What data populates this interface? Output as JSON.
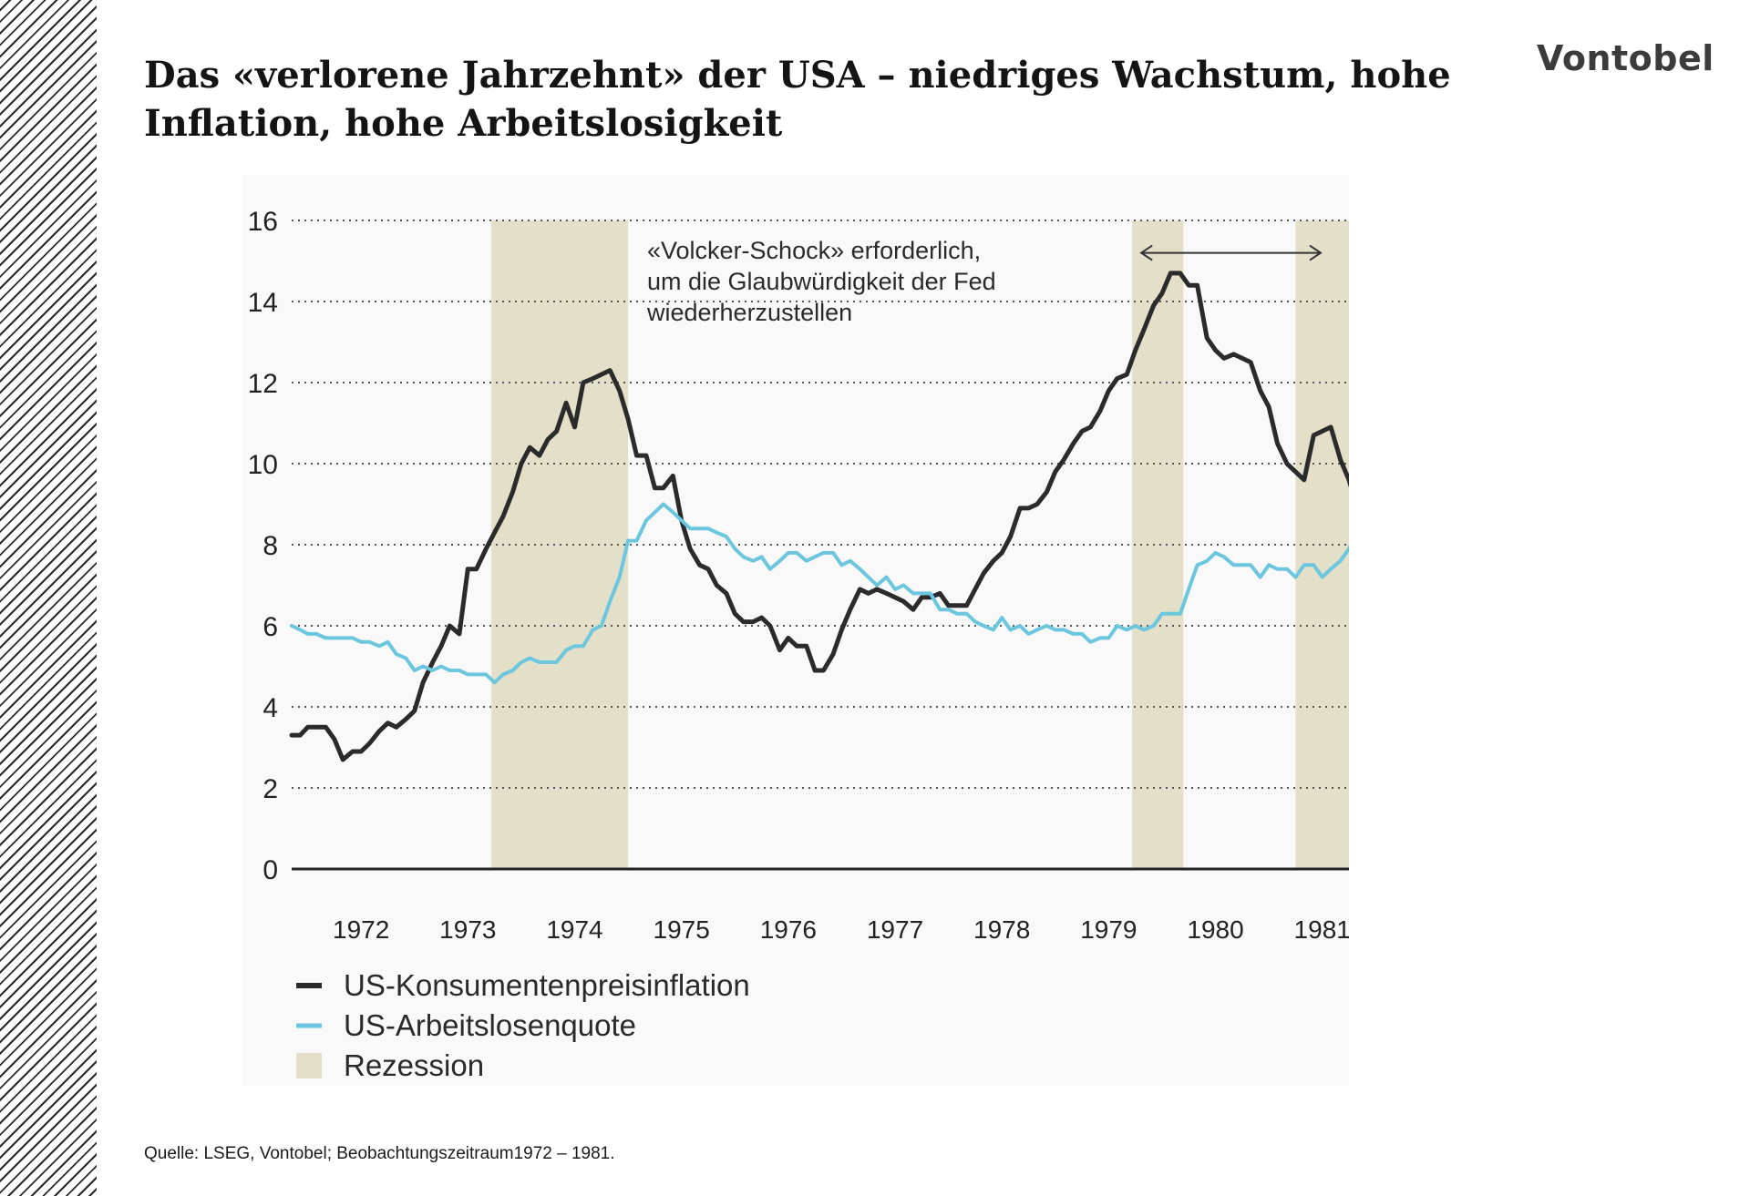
{
  "page": {
    "title": "Das «verlorene Jahrzehnt» der USA – niedriges Wachstum, hohe Inflation, hohe Arbeitslosigkeit",
    "logo_text": "Vontobel",
    "source": "Quelle: LSEG, Vontobel; Beobachtungszeitraum1972 – 1981."
  },
  "chart_data": {
    "type": "line",
    "title": "",
    "xlabel": "",
    "ylabel": "",
    "xlim": [
      1971.85,
      1981.75
    ],
    "ylim": [
      0,
      16
    ],
    "yticks": [
      0,
      2,
      4,
      6,
      8,
      10,
      12,
      14,
      16
    ],
    "xticks": [
      1972,
      1973,
      1974,
      1975,
      1976,
      1977,
      1978,
      1979,
      1980,
      1981
    ],
    "grid": "horizontal dotted",
    "legend_position": "bottom-left",
    "colors": {
      "inflation": "#2b2b2b",
      "unemployment": "#6cc6de",
      "recession": "#e3dfc8",
      "plot_bg": "#f9f9f9"
    },
    "recessions": [
      {
        "start": 1973.72,
        "end": 1975.0
      },
      {
        "start": 1979.72,
        "end": 1980.2
      },
      {
        "start": 1981.25,
        "end": 1981.75
      }
    ],
    "annotation": {
      "lines": [
        "«Volcker-Schock» erforderlich,",
        "um die Glaubwürdigkeit der Fed",
        "wiederherzustellen"
      ],
      "arrow_from": 1979.72,
      "arrow_to": 1981.4,
      "arrow_y": 15.2
    },
    "series": [
      {
        "name": "US-Konsumentenpreisinflation",
        "key": "inflation",
        "points": [
          [
            1971.85,
            3.3
          ],
          [
            1971.93,
            3.3
          ],
          [
            1972.0,
            3.5
          ],
          [
            1972.08,
            3.5
          ],
          [
            1972.17,
            3.5
          ],
          [
            1972.25,
            3.2
          ],
          [
            1972.33,
            2.7
          ],
          [
            1972.42,
            2.9
          ],
          [
            1972.5,
            2.9
          ],
          [
            1972.58,
            3.1
          ],
          [
            1972.67,
            3.4
          ],
          [
            1972.75,
            3.6
          ],
          [
            1972.83,
            3.5
          ],
          [
            1972.92,
            3.7
          ],
          [
            1973.0,
            3.9
          ],
          [
            1973.08,
            4.6
          ],
          [
            1973.17,
            5.1
          ],
          [
            1973.25,
            5.5
          ],
          [
            1973.33,
            6.0
          ],
          [
            1973.42,
            5.8
          ],
          [
            1973.5,
            7.4
          ],
          [
            1973.58,
            7.4
          ],
          [
            1973.67,
            7.9
          ],
          [
            1973.75,
            8.3
          ],
          [
            1973.83,
            8.7
          ],
          [
            1973.92,
            9.3
          ],
          [
            1974.0,
            10.0
          ],
          [
            1974.08,
            10.4
          ],
          [
            1974.17,
            10.2
          ],
          [
            1974.25,
            10.6
          ],
          [
            1974.33,
            10.8
          ],
          [
            1974.42,
            11.5
          ],
          [
            1974.5,
            10.9
          ],
          [
            1974.58,
            12.0
          ],
          [
            1974.67,
            12.1
          ],
          [
            1974.75,
            12.2
          ],
          [
            1974.83,
            12.3
          ],
          [
            1974.92,
            11.8
          ],
          [
            1975.0,
            11.1
          ],
          [
            1975.08,
            10.2
          ],
          [
            1975.17,
            10.2
          ],
          [
            1975.25,
            9.4
          ],
          [
            1975.33,
            9.4
          ],
          [
            1975.42,
            9.7
          ],
          [
            1975.5,
            8.6
          ],
          [
            1975.58,
            7.9
          ],
          [
            1975.67,
            7.5
          ],
          [
            1975.75,
            7.4
          ],
          [
            1975.83,
            7.0
          ],
          [
            1975.92,
            6.8
          ],
          [
            1976.0,
            6.3
          ],
          [
            1976.08,
            6.1
          ],
          [
            1976.17,
            6.1
          ],
          [
            1976.25,
            6.2
          ],
          [
            1976.33,
            6.0
          ],
          [
            1976.42,
            5.4
          ],
          [
            1976.5,
            5.7
          ],
          [
            1976.58,
            5.5
          ],
          [
            1976.67,
            5.5
          ],
          [
            1976.75,
            4.9
          ],
          [
            1976.83,
            4.9
          ],
          [
            1976.92,
            5.3
          ],
          [
            1977.0,
            5.9
          ],
          [
            1977.08,
            6.4
          ],
          [
            1977.17,
            6.9
          ],
          [
            1977.25,
            6.8
          ],
          [
            1977.33,
            6.9
          ],
          [
            1977.42,
            6.8
          ],
          [
            1977.5,
            6.7
          ],
          [
            1977.58,
            6.6
          ],
          [
            1977.67,
            6.4
          ],
          [
            1977.75,
            6.7
          ],
          [
            1977.83,
            6.7
          ],
          [
            1977.92,
            6.8
          ],
          [
            1978.0,
            6.5
          ],
          [
            1978.08,
            6.5
          ],
          [
            1978.17,
            6.5
          ],
          [
            1978.25,
            6.9
          ],
          [
            1978.33,
            7.3
          ],
          [
            1978.42,
            7.6
          ],
          [
            1978.5,
            7.8
          ],
          [
            1978.58,
            8.2
          ],
          [
            1978.67,
            8.9
          ],
          [
            1978.75,
            8.9
          ],
          [
            1978.83,
            9.0
          ],
          [
            1978.92,
            9.3
          ],
          [
            1979.0,
            9.8
          ],
          [
            1979.08,
            10.1
          ],
          [
            1979.17,
            10.5
          ],
          [
            1979.25,
            10.8
          ],
          [
            1979.33,
            10.9
          ],
          [
            1979.42,
            11.3
          ],
          [
            1979.5,
            11.8
          ],
          [
            1979.58,
            12.1
          ],
          [
            1979.67,
            12.2
          ],
          [
            1979.75,
            12.8
          ],
          [
            1979.83,
            13.3
          ],
          [
            1979.92,
            13.9
          ],
          [
            1980.0,
            14.2
          ],
          [
            1980.08,
            14.7
          ],
          [
            1980.17,
            14.7
          ],
          [
            1980.25,
            14.4
          ],
          [
            1980.33,
            14.4
          ],
          [
            1980.42,
            13.1
          ],
          [
            1980.5,
            12.8
          ],
          [
            1980.58,
            12.6
          ],
          [
            1980.67,
            12.7
          ],
          [
            1980.75,
            12.6
          ],
          [
            1980.83,
            12.5
          ],
          [
            1980.92,
            11.8
          ],
          [
            1981.0,
            11.4
          ],
          [
            1981.08,
            10.5
          ],
          [
            1981.17,
            10.0
          ],
          [
            1981.25,
            9.8
          ],
          [
            1981.33,
            9.6
          ],
          [
            1981.42,
            10.7
          ],
          [
            1981.5,
            10.8
          ],
          [
            1981.58,
            10.9
          ],
          [
            1981.67,
            10.1
          ],
          [
            1981.75,
            9.6
          ],
          [
            1981.83,
            8.9
          ],
          [
            1981.9,
            8.5
          ]
        ]
      },
      {
        "name": "US-Arbeitslosenquote",
        "key": "unemployment",
        "points": [
          [
            1971.85,
            6.0
          ],
          [
            1971.93,
            5.9
          ],
          [
            1972.0,
            5.8
          ],
          [
            1972.08,
            5.8
          ],
          [
            1972.17,
            5.7
          ],
          [
            1972.25,
            5.7
          ],
          [
            1972.33,
            5.7
          ],
          [
            1972.42,
            5.7
          ],
          [
            1972.5,
            5.6
          ],
          [
            1972.58,
            5.6
          ],
          [
            1972.67,
            5.5
          ],
          [
            1972.75,
            5.6
          ],
          [
            1972.83,
            5.3
          ],
          [
            1972.92,
            5.2
          ],
          [
            1973.0,
            4.9
          ],
          [
            1973.08,
            5.0
          ],
          [
            1973.17,
            4.9
          ],
          [
            1973.25,
            5.0
          ],
          [
            1973.33,
            4.9
          ],
          [
            1973.42,
            4.9
          ],
          [
            1973.5,
            4.8
          ],
          [
            1973.58,
            4.8
          ],
          [
            1973.67,
            4.8
          ],
          [
            1973.75,
            4.6
          ],
          [
            1973.83,
            4.8
          ],
          [
            1973.92,
            4.9
          ],
          [
            1974.0,
            5.1
          ],
          [
            1974.08,
            5.2
          ],
          [
            1974.17,
            5.1
          ],
          [
            1974.25,
            5.1
          ],
          [
            1974.33,
            5.1
          ],
          [
            1974.42,
            5.4
          ],
          [
            1974.5,
            5.5
          ],
          [
            1974.58,
            5.5
          ],
          [
            1974.67,
            5.9
          ],
          [
            1974.75,
            6.0
          ],
          [
            1974.83,
            6.6
          ],
          [
            1974.92,
            7.2
          ],
          [
            1975.0,
            8.1
          ],
          [
            1975.08,
            8.1
          ],
          [
            1975.17,
            8.6
          ],
          [
            1975.25,
            8.8
          ],
          [
            1975.33,
            9.0
          ],
          [
            1975.42,
            8.8
          ],
          [
            1975.5,
            8.6
          ],
          [
            1975.58,
            8.4
          ],
          [
            1975.67,
            8.4
          ],
          [
            1975.75,
            8.4
          ],
          [
            1975.83,
            8.3
          ],
          [
            1975.92,
            8.2
          ],
          [
            1976.0,
            7.9
          ],
          [
            1976.08,
            7.7
          ],
          [
            1976.17,
            7.6
          ],
          [
            1976.25,
            7.7
          ],
          [
            1976.33,
            7.4
          ],
          [
            1976.42,
            7.6
          ],
          [
            1976.5,
            7.8
          ],
          [
            1976.58,
            7.8
          ],
          [
            1976.67,
            7.6
          ],
          [
            1976.75,
            7.7
          ],
          [
            1976.83,
            7.8
          ],
          [
            1976.92,
            7.8
          ],
          [
            1977.0,
            7.5
          ],
          [
            1977.08,
            7.6
          ],
          [
            1977.17,
            7.4
          ],
          [
            1977.25,
            7.2
          ],
          [
            1977.33,
            7.0
          ],
          [
            1977.42,
            7.2
          ],
          [
            1977.5,
            6.9
          ],
          [
            1977.58,
            7.0
          ],
          [
            1977.67,
            6.8
          ],
          [
            1977.75,
            6.8
          ],
          [
            1977.83,
            6.8
          ],
          [
            1977.92,
            6.4
          ],
          [
            1978.0,
            6.4
          ],
          [
            1978.08,
            6.3
          ],
          [
            1978.17,
            6.3
          ],
          [
            1978.25,
            6.1
          ],
          [
            1978.33,
            6.0
          ],
          [
            1978.42,
            5.9
          ],
          [
            1978.5,
            6.2
          ],
          [
            1978.58,
            5.9
          ],
          [
            1978.67,
            6.0
          ],
          [
            1978.75,
            5.8
          ],
          [
            1978.83,
            5.9
          ],
          [
            1978.92,
            6.0
          ],
          [
            1979.0,
            5.9
          ],
          [
            1979.08,
            5.9
          ],
          [
            1979.17,
            5.8
          ],
          [
            1979.25,
            5.8
          ],
          [
            1979.33,
            5.6
          ],
          [
            1979.42,
            5.7
          ],
          [
            1979.5,
            5.7
          ],
          [
            1979.58,
            6.0
          ],
          [
            1979.67,
            5.9
          ],
          [
            1979.75,
            6.0
          ],
          [
            1979.83,
            5.9
          ],
          [
            1979.92,
            6.0
          ],
          [
            1980.0,
            6.3
          ],
          [
            1980.08,
            6.3
          ],
          [
            1980.17,
            6.3
          ],
          [
            1980.25,
            6.9
          ],
          [
            1980.33,
            7.5
          ],
          [
            1980.42,
            7.6
          ],
          [
            1980.5,
            7.8
          ],
          [
            1980.58,
            7.7
          ],
          [
            1980.67,
            7.5
          ],
          [
            1980.75,
            7.5
          ],
          [
            1980.83,
            7.5
          ],
          [
            1980.92,
            7.2
          ],
          [
            1981.0,
            7.5
          ],
          [
            1981.08,
            7.4
          ],
          [
            1981.17,
            7.4
          ],
          [
            1981.25,
            7.2
          ],
          [
            1981.33,
            7.5
          ],
          [
            1981.42,
            7.5
          ],
          [
            1981.5,
            7.2
          ],
          [
            1981.58,
            7.4
          ],
          [
            1981.67,
            7.6
          ],
          [
            1981.75,
            7.9
          ],
          [
            1981.83,
            8.3
          ],
          [
            1981.9,
            8.5
          ]
        ]
      }
    ],
    "legend": [
      {
        "label": "US-Konsumentenpreisinflation",
        "key": "inflation"
      },
      {
        "label": "US-Arbeitslosenquote",
        "key": "unemployment"
      },
      {
        "label": "Rezession",
        "key": "recession"
      }
    ]
  }
}
